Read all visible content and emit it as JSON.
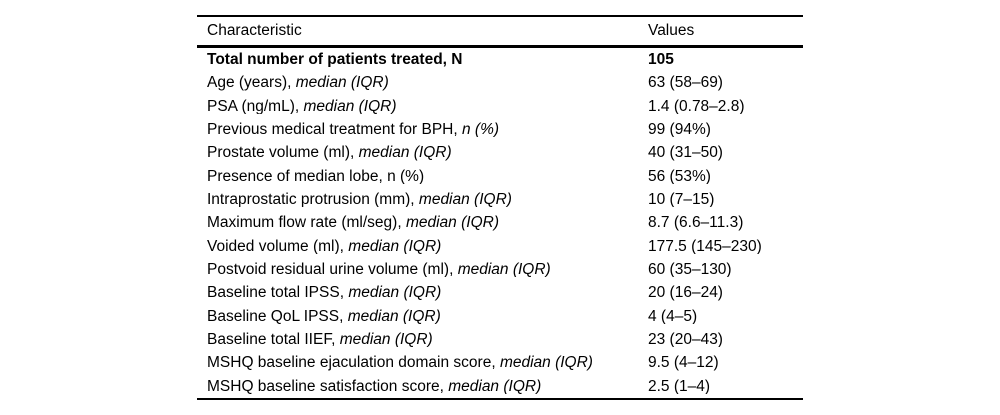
{
  "table": {
    "header": {
      "characteristic": "Characteristic",
      "values": "Values"
    },
    "rows": [
      {
        "text": "Total number of patients treated, N",
        "italic": "",
        "value": "105"
      },
      {
        "text": "Age (years), ",
        "italic": "median (IQR)",
        "value": "63 (58–69)"
      },
      {
        "text": "PSA (ng/mL), ",
        "italic": "median (IQR)",
        "value": "1.4 (0.78–2.8)"
      },
      {
        "text": "Previous medical treatment for BPH, ",
        "italic": "n (%)",
        "value": "99 (94%)"
      },
      {
        "text": "Prostate volume (ml), ",
        "italic": "median (IQR)",
        "value": "40 (31–50)"
      },
      {
        "text": "Presence of median lobe, n (%)",
        "italic": "",
        "value": "56 (53%)"
      },
      {
        "text": "Intraprostatic protrusion (mm), ",
        "italic": "median (IQR)",
        "value": "10 (7–15)"
      },
      {
        "text": "Maximum flow rate (ml/seg), ",
        "italic": "median (IQR)",
        "value": "8.7 (6.6–11.3)"
      },
      {
        "text": "Voided volume (ml), ",
        "italic": "median (IQR)",
        "value": "177.5 (145–230)"
      },
      {
        "text": "Postvoid residual urine volume (ml), ",
        "italic": "median (IQR)",
        "value": "60 (35–130)"
      },
      {
        "text": "Baseline total IPSS, ",
        "italic": "median (IQR)",
        "value": "20 (16–24)"
      },
      {
        "text": "Baseline QoL IPSS, ",
        "italic": "median (IQR)",
        "value": "4 (4–5)"
      },
      {
        "text": "Baseline total IIEF, ",
        "italic": "median (IQR)",
        "value": "23 (20–43)"
      },
      {
        "text": "MSHQ baseline ejaculation domain score, ",
        "italic": "median (IQR)",
        "value": "9.5 (4–12)"
      },
      {
        "text": "MSHQ baseline satisfaction score, ",
        "italic": "median (IQR)",
        "value": "2.5 (1–4)"
      }
    ]
  }
}
